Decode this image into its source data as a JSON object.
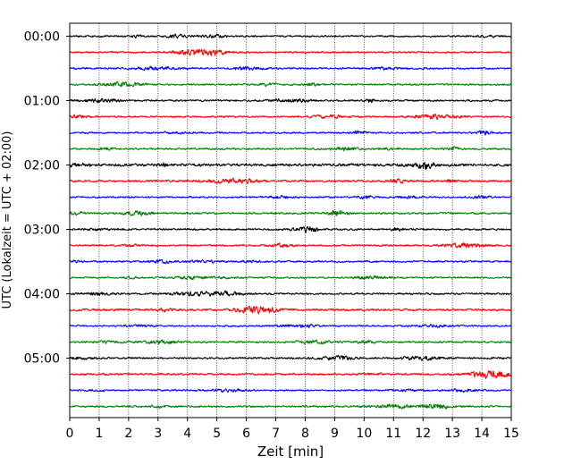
{
  "chart_data": {
    "type": "line",
    "title": "",
    "xlabel": "Zeit  [min]",
    "ylabel": "UTC (Lokalzeit = UTC + 02:00)",
    "xlim": [
      0,
      15
    ],
    "x_ticks": [
      "0",
      "1",
      "2",
      "3",
      "4",
      "5",
      "6",
      "7",
      "8",
      "9",
      "10",
      "11",
      "12",
      "13",
      "14",
      "15"
    ],
    "y_ticks": [
      "00:00",
      "01:00",
      "02:00",
      "03:00",
      "04:00",
      "05:00"
    ],
    "grid": "vertical dotted",
    "line_minutes": 15,
    "color_cycle": [
      "#000000",
      "#ff0000",
      "#0000ff",
      "#008000"
    ],
    "traces": [
      {
        "start": "00:00",
        "color": "#000000",
        "amplitude": 1.0
      },
      {
        "start": "00:15",
        "color": "#ff0000",
        "amplitude": 1.0
      },
      {
        "start": "00:30",
        "color": "#0000ff",
        "amplitude": 1.1
      },
      {
        "start": "00:45",
        "color": "#008000",
        "amplitude": 1.0
      },
      {
        "start": "01:00",
        "color": "#000000",
        "amplitude": 1.1
      },
      {
        "start": "01:15",
        "color": "#ff0000",
        "amplitude": 1.0
      },
      {
        "start": "01:30",
        "color": "#0000ff",
        "amplitude": 1.0
      },
      {
        "start": "01:45",
        "color": "#008000",
        "amplitude": 1.1
      },
      {
        "start": "02:00",
        "color": "#000000",
        "amplitude": 1.6
      },
      {
        "start": "02:15",
        "color": "#ff0000",
        "amplitude": 1.2
      },
      {
        "start": "02:30",
        "color": "#0000ff",
        "amplitude": 1.0
      },
      {
        "start": "02:45",
        "color": "#008000",
        "amplitude": 1.1
      },
      {
        "start": "03:00",
        "color": "#000000",
        "amplitude": 1.1
      },
      {
        "start": "03:15",
        "color": "#ff0000",
        "amplitude": 1.0
      },
      {
        "start": "03:30",
        "color": "#0000ff",
        "amplitude": 1.1
      },
      {
        "start": "03:45",
        "color": "#008000",
        "amplitude": 1.0
      },
      {
        "start": "04:00",
        "color": "#000000",
        "amplitude": 1.1
      },
      {
        "start": "04:15",
        "color": "#ff0000",
        "amplitude": 1.3
      },
      {
        "start": "04:30",
        "color": "#0000ff",
        "amplitude": 1.0
      },
      {
        "start": "04:45",
        "color": "#008000",
        "amplitude": 1.1
      },
      {
        "start": "05:00",
        "color": "#000000",
        "amplitude": 1.1
      },
      {
        "start": "05:15",
        "color": "#ff0000",
        "amplitude": 1.2
      },
      {
        "start": "05:30",
        "color": "#0000ff",
        "amplitude": 1.0
      },
      {
        "start": "05:45",
        "color": "#008000",
        "amplitude": 1.1
      }
    ]
  }
}
